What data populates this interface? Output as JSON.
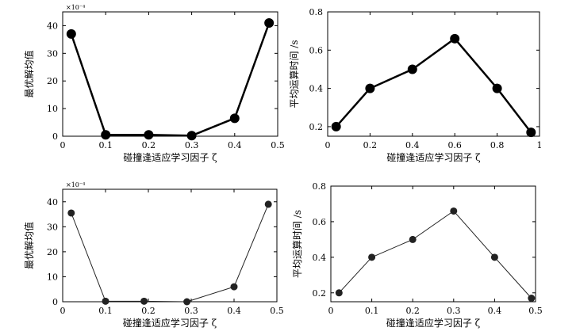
{
  "chart_data": [
    {
      "type": "line",
      "panel": "top-left",
      "style": "bold",
      "xlabel": "碰撞逢适应学习因子 ζ",
      "ylabel": "最优解均值",
      "exponent": "×10⁻⁴",
      "xlim": [
        0,
        0.5
      ],
      "ylim": [
        0,
        45
      ],
      "xticks": [
        0,
        0.1,
        0.2,
        0.3,
        0.4,
        0.5
      ],
      "xtick_labels": [
        "0",
        "0.1",
        "0.2",
        "0.3",
        "0.4",
        "0.5"
      ],
      "yticks": [
        0,
        10,
        20,
        30,
        40
      ],
      "ytick_labels": [
        "0",
        "10",
        "20",
        "30",
        "40"
      ],
      "grid": false,
      "series": [
        {
          "x": [
            0.02,
            0.1,
            0.2,
            0.3,
            0.4,
            0.48
          ],
          "y": [
            37,
            0.5,
            0.5,
            0.2,
            6.5,
            41
          ]
        }
      ]
    },
    {
      "type": "line",
      "panel": "top-right",
      "style": "bold",
      "xlabel": "碰撞逢适应学习因子 ζ",
      "ylabel": "平均运算时间 /s",
      "xlim": [
        0,
        1
      ],
      "ylim": [
        0.15,
        0.8
      ],
      "xticks": [
        0,
        0.2,
        0.4,
        0.6,
        0.8,
        1
      ],
      "xtick_labels": [
        "0",
        "0.2",
        "0.4",
        "0.6",
        "0.8",
        "1"
      ],
      "yticks": [
        0.2,
        0.4,
        0.6,
        0.8
      ],
      "ytick_labels": [
        "0.2",
        "0.4",
        "0.6",
        "0.8"
      ],
      "grid": false,
      "series": [
        {
          "x": [
            0.04,
            0.2,
            0.4,
            0.6,
            0.8,
            0.96
          ],
          "y": [
            0.2,
            0.4,
            0.5,
            0.66,
            0.4,
            0.17
          ]
        }
      ]
    },
    {
      "type": "line",
      "panel": "bottom-left",
      "style": "thin",
      "xlabel": "碰撞逢适应学习因子 ζ",
      "ylabel": "最优解均值",
      "exponent": "×10⁻⁴",
      "xlim": [
        0,
        0.5
      ],
      "ylim": [
        0,
        45
      ],
      "xticks": [
        0,
        0.1,
        0.2,
        0.3,
        0.4,
        0.5
      ],
      "xtick_labels": [
        "0",
        "0.1",
        "0.2",
        "0.3",
        "0.4",
        "0.5"
      ],
      "yticks": [
        0,
        10,
        20,
        30,
        40
      ],
      "ytick_labels": [
        "0",
        "10",
        "20",
        "30",
        "40"
      ],
      "grid": false,
      "series": [
        {
          "x": [
            0.02,
            0.1,
            0.19,
            0.29,
            0.4,
            0.48
          ],
          "y": [
            35.5,
            0.2,
            0.2,
            0,
            6,
            39
          ]
        }
      ]
    },
    {
      "type": "line",
      "panel": "bottom-right",
      "style": "thin",
      "xlabel": "碰撞逢适应学习因子 ζ",
      "ylabel": "平均运算时间 /s",
      "xlim": [
        0,
        0.5
      ],
      "ylim": [
        0.15,
        0.8
      ],
      "xticks": [
        0,
        0.1,
        0.2,
        0.3,
        0.4,
        0.5
      ],
      "xtick_labels": [
        "0",
        "0.1",
        "0.2",
        "0.3",
        "0.4",
        "0.5"
      ],
      "yticks": [
        0.2,
        0.4,
        0.6,
        0.8
      ],
      "ytick_labels": [
        "0.2",
        "0.4",
        "0.6",
        "0.8"
      ],
      "grid": false,
      "series": [
        {
          "x": [
            0.02,
            0.1,
            0.2,
            0.3,
            0.4,
            0.49
          ],
          "y": [
            0.2,
            0.4,
            0.5,
            0.66,
            0.4,
            0.17
          ]
        }
      ]
    }
  ]
}
